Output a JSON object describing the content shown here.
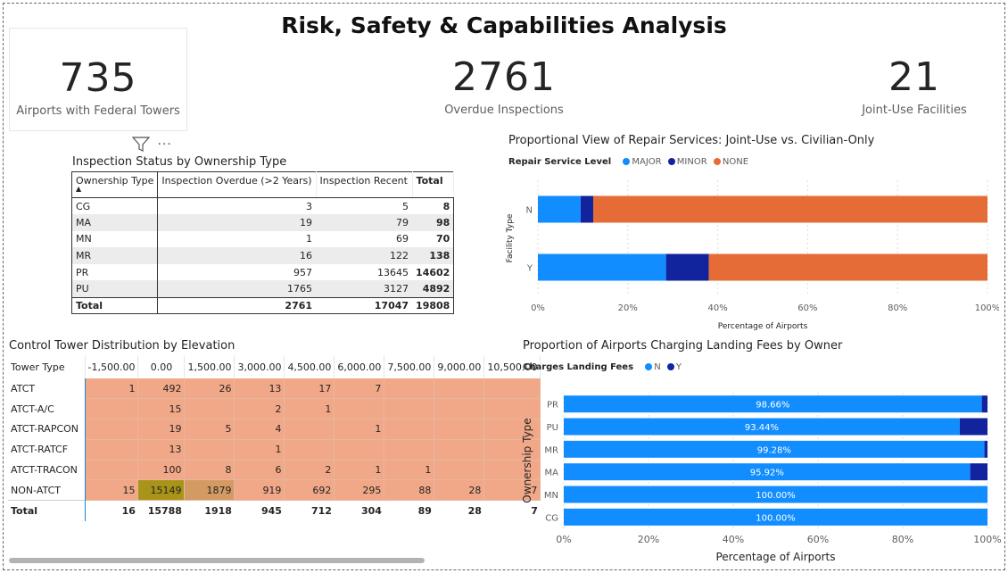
{
  "page": {
    "title": "Risk, Safety & Capabilities Analysis"
  },
  "kpis": [
    {
      "value": "735",
      "label": "Airports with Federal Towers"
    },
    {
      "value": "2761",
      "label": "Overdue Inspections"
    },
    {
      "value": "21",
      "label": "Joint-Use Facilities"
    }
  ],
  "inspection_table": {
    "title": "Inspection Status by Ownership Type",
    "headers": [
      "Ownership Type",
      "Inspection Overdue (>2 Years)",
      "Inspection Recent",
      "Total"
    ],
    "rows": [
      [
        "CG",
        "3",
        "5",
        "8"
      ],
      [
        "MA",
        "19",
        "79",
        "98"
      ],
      [
        "MN",
        "1",
        "69",
        "70"
      ],
      [
        "MR",
        "16",
        "122",
        "138"
      ],
      [
        "PR",
        "957",
        "13645",
        "14602"
      ],
      [
        "PU",
        "1765",
        "3127",
        "4892"
      ]
    ],
    "total": [
      "Total",
      "2761",
      "17047",
      "19808"
    ],
    "icons": {
      "filter": "filter-icon",
      "more": "more-options-icon"
    }
  },
  "tower_table": {
    "title": "Control Tower Distribution by Elevation",
    "headers": [
      "Tower Type",
      "-1,500.00",
      "0.00",
      "1,500.00",
      "3,000.00",
      "4,500.00",
      "6,000.00",
      "7,500.00",
      "9,000.00",
      "10,500.00"
    ],
    "rows": [
      [
        "ATCT",
        "1",
        "492",
        "26",
        "13",
        "17",
        "7",
        "",
        "",
        ""
      ],
      [
        "ATCT-A/C",
        "",
        "15",
        "",
        "2",
        "1",
        "",
        "",
        "",
        ""
      ],
      [
        "ATCT-RAPCON",
        "",
        "19",
        "5",
        "4",
        "",
        "1",
        "",
        "",
        ""
      ],
      [
        "ATCT-RATCF",
        "",
        "13",
        "",
        "1",
        "",
        "",
        "",
        "",
        ""
      ],
      [
        "ATCT-TRACON",
        "",
        "100",
        "8",
        "6",
        "2",
        "1",
        "1",
        "",
        ""
      ],
      [
        "NON-ATCT",
        "15",
        "15149",
        "1879",
        "919",
        "692",
        "295",
        "88",
        "28",
        "7"
      ]
    ],
    "total": [
      "Total",
      "16",
      "15788",
      "1918",
      "945",
      "712",
      "304",
      "89",
      "28",
      "7"
    ],
    "colors": {
      "base": "#f0a888",
      "high": "#a89418",
      "mid": "#d49a64"
    }
  },
  "chart_data": [
    {
      "type": "bar",
      "orientation": "horizontal",
      "stacked": "100%",
      "title": "Proportional View of Repair Services: Joint-Use vs. Civilian-Only",
      "legend_title": "Repair Service Level",
      "categories": [
        "N",
        "Y"
      ],
      "series": [
        {
          "name": "MAJOR",
          "color": "#118dff",
          "values": [
            9.5,
            28.5
          ]
        },
        {
          "name": "MINOR",
          "color": "#12239e",
          "values": [
            2.8,
            9.5
          ]
        },
        {
          "name": "NONE",
          "color": "#e66c37",
          "values": [
            87.7,
            62.0
          ]
        }
      ],
      "xlabel": "Percentage of Airports",
      "ylabel": "Facility Type",
      "xticks": [
        "0%",
        "20%",
        "40%",
        "60%",
        "80%",
        "100%"
      ],
      "xlim": [
        0,
        100
      ],
      "legend_position": "top-left",
      "grid": true
    },
    {
      "type": "bar",
      "orientation": "horizontal",
      "stacked": "100%",
      "title": "Proportion of Airports Charging Landing Fees by Owner",
      "legend_title": "Charges Landing Fees",
      "categories": [
        "PR",
        "PU",
        "MR",
        "MA",
        "MN",
        "CG"
      ],
      "series": [
        {
          "name": "N",
          "color": "#118dff",
          "values": [
            98.66,
            93.44,
            99.28,
            95.92,
            100.0,
            100.0
          ],
          "labels": [
            "98.66%",
            "93.44%",
            "99.28%",
            "95.92%",
            "100.00%",
            "100.00%"
          ]
        },
        {
          "name": "Y",
          "color": "#12239e",
          "values": [
            1.34,
            6.56,
            0.72,
            4.08,
            0,
            0
          ]
        }
      ],
      "xlabel": "Percentage of Airports",
      "ylabel": "Ownership Type",
      "xticks": [
        "0%",
        "20%",
        "40%",
        "60%",
        "80%",
        "100%"
      ],
      "xlim": [
        0,
        100
      ],
      "legend_position": "top-left",
      "grid": true
    }
  ]
}
